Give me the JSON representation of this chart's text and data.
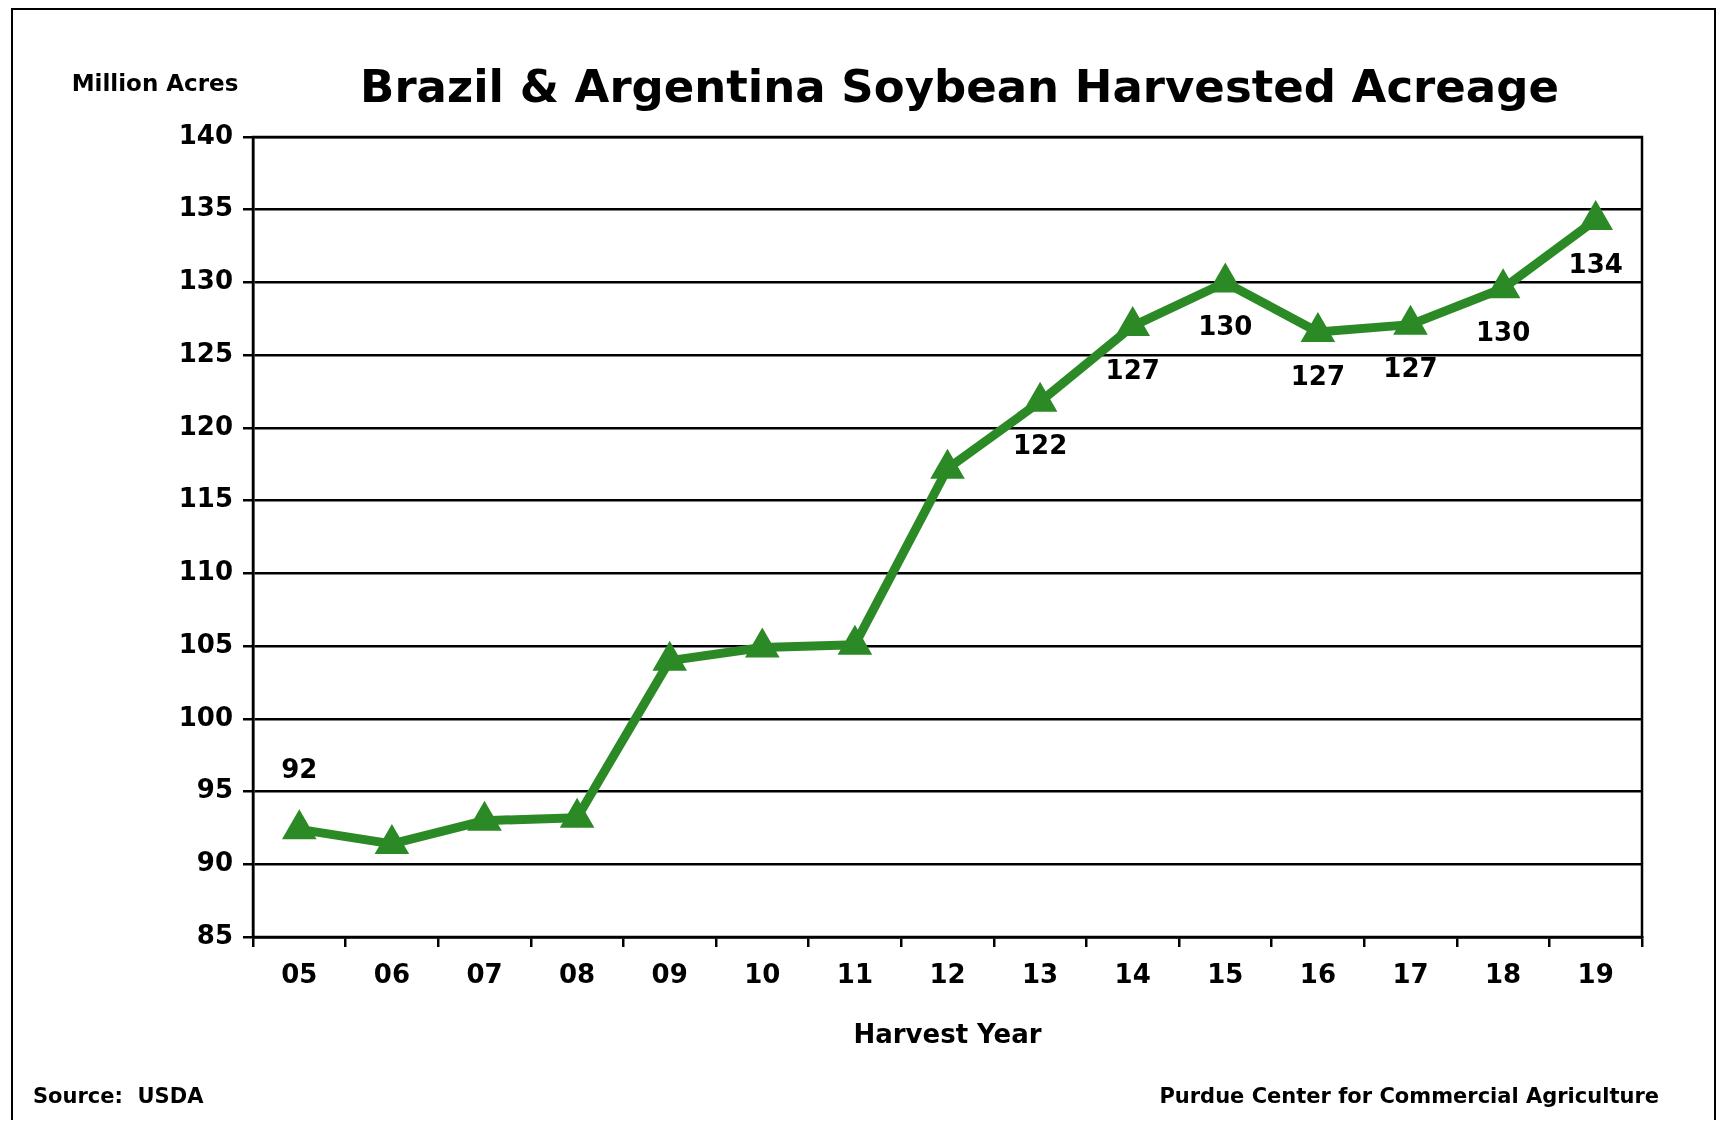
{
  "chart_data": {
    "type": "line",
    "title": "Brazil & Argentina Soybean Harvested Acreage",
    "ylabel": "Million Acres",
    "xlabel": "Harvest Year",
    "categories": [
      "05",
      "06",
      "07",
      "08",
      "09",
      "10",
      "11",
      "12",
      "13",
      "14",
      "15",
      "16",
      "17",
      "18",
      "19"
    ],
    "series": [
      {
        "color": "#2b8a26",
        "values": [
          92.4,
          91.4,
          93.0,
          93.2,
          104.0,
          104.9,
          105.1,
          117.2,
          121.8,
          127.0,
          130.0,
          126.6,
          127.1,
          129.6,
          134.3
        ],
        "value_labels": [
          "92",
          null,
          null,
          null,
          null,
          null,
          null,
          null,
          "122",
          "127",
          "130",
          "127",
          "127",
          "130",
          "134"
        ]
      }
    ],
    "ylim": [
      85,
      140
    ],
    "yticks": [
      85,
      90,
      95,
      100,
      105,
      110,
      115,
      120,
      125,
      130,
      135,
      140
    ],
    "grid": "y",
    "marker": "triangle",
    "line_style": "solid",
    "annotations": [
      "Source:  USDA",
      "Purdue Center for Commercial Agriculture"
    ]
  }
}
